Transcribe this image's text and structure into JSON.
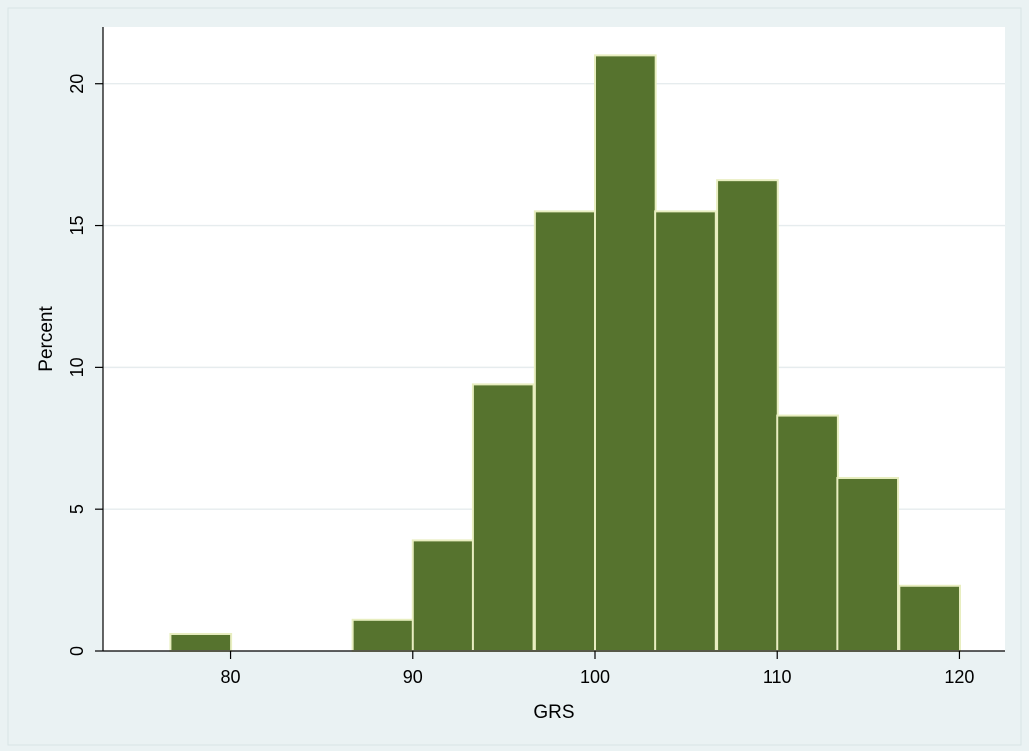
{
  "chart_data": {
    "type": "bar",
    "histogram": true,
    "xlabel": "GRS",
    "ylabel": "Percent",
    "xlim": [
      73,
      122.5
    ],
    "ylim": [
      0,
      22
    ],
    "xticks": [
      80,
      90,
      100,
      110,
      120
    ],
    "yticks": [
      0,
      5,
      10,
      15,
      20
    ],
    "grid": true,
    "bar_color": "#56732e",
    "bar_edge_color": "#e8eec0",
    "bin_width": 3.33,
    "bins": [
      {
        "start": 76.7,
        "value": 0.6
      },
      {
        "start": 80.0,
        "value": 0
      },
      {
        "start": 83.3,
        "value": 0
      },
      {
        "start": 86.7,
        "value": 1.1
      },
      {
        "start": 90.0,
        "value": 3.9
      },
      {
        "start": 93.3,
        "value": 9.4
      },
      {
        "start": 96.7,
        "value": 15.5
      },
      {
        "start": 100.0,
        "value": 21.0
      },
      {
        "start": 103.3,
        "value": 15.5
      },
      {
        "start": 106.7,
        "value": 16.6
      },
      {
        "start": 110.0,
        "value": 8.3
      },
      {
        "start": 113.3,
        "value": 6.1
      },
      {
        "start": 116.7,
        "value": 2.3
      }
    ]
  }
}
